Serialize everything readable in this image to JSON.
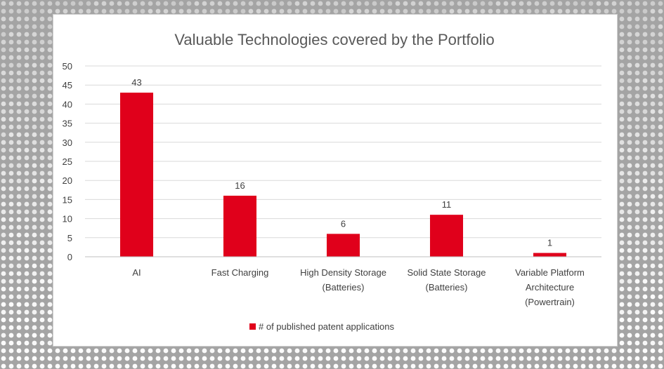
{
  "chart_data": {
    "type": "bar",
    "title": "Valuable Technologies covered by the Portfolio",
    "categories": [
      "AI",
      "Fast Charging",
      "High Density Storage (Batteries)",
      "Solid State Storage (Batteries)",
      "Variable Platform Architecture (Powertrain)"
    ],
    "category_lines": [
      [
        "AI"
      ],
      [
        "Fast Charging"
      ],
      [
        "High Density Storage",
        "(Batteries)"
      ],
      [
        "Solid State Storage",
        "(Batteries)"
      ],
      [
        "Variable Platform",
        "Architecture",
        "(Powertrain)"
      ]
    ],
    "series": [
      {
        "name": "# of published patent applications",
        "values": [
          43,
          16,
          6,
          11,
          1
        ]
      }
    ],
    "ylim": [
      0,
      50
    ],
    "yticks": [
      0,
      5,
      10,
      15,
      20,
      25,
      30,
      35,
      40,
      45,
      50
    ],
    "xlabel": "",
    "ylabel": "",
    "grid": true,
    "legend": "bottom",
    "bar_color": "#e0001b"
  }
}
